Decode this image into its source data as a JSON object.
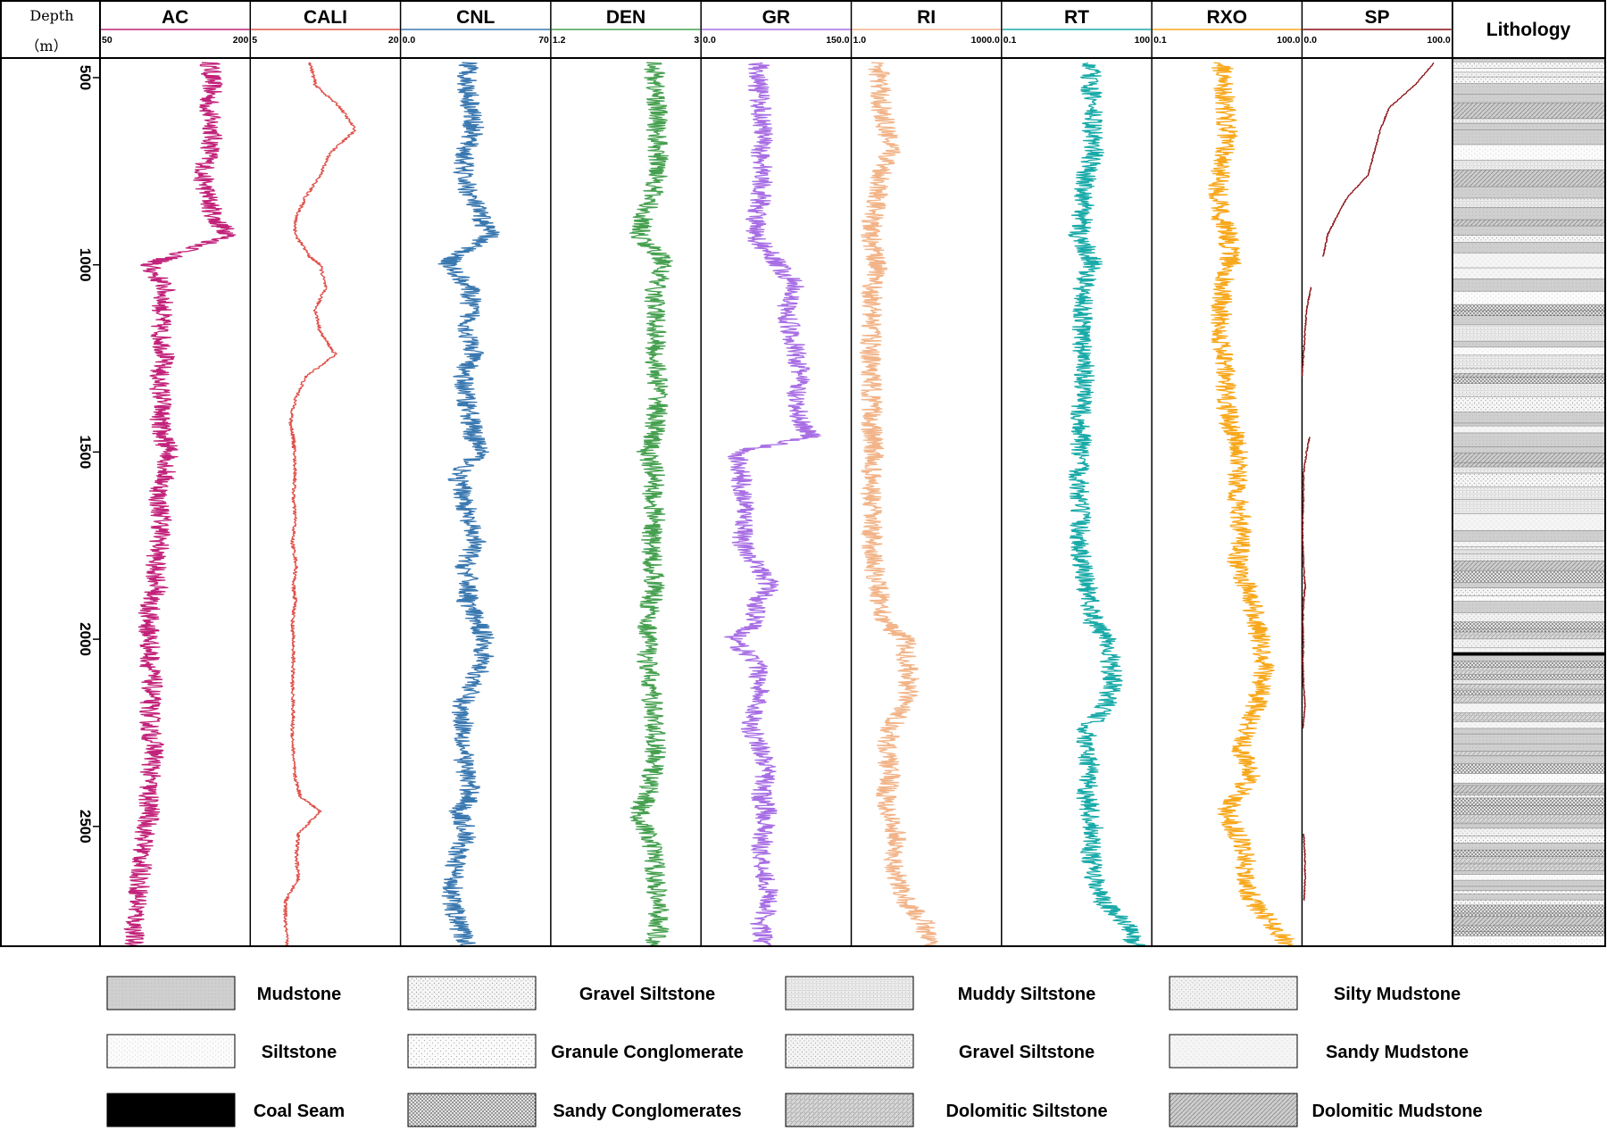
{
  "depth_track": {
    "title_line1": "Depth",
    "title_line2": "（m）"
  },
  "lithology_track": {
    "title": "Lithology"
  },
  "legend": [
    {
      "label": "Mudstone",
      "pattern": "mudstone"
    },
    {
      "label": "Gravel Siltstone",
      "pattern": "gravel_siltstone"
    },
    {
      "label": "Muddy Siltstone",
      "pattern": "muddy_siltstone"
    },
    {
      "label": "Silty Mudstone",
      "pattern": "silty_mudstone"
    },
    {
      "label": "Siltstone",
      "pattern": "siltstone"
    },
    {
      "label": "Granule Conglomerate",
      "pattern": "granule_conglomerate"
    },
    {
      "label": "Gravel Siltstone",
      "pattern": "gravel_siltstone2"
    },
    {
      "label": "Sandy Mudstone",
      "pattern": "sandy_mudstone"
    },
    {
      "label": "Coal Seam",
      "pattern": "coal"
    },
    {
      "label": "Sandy Conglomerates",
      "pattern": "sandy_conglomerates"
    },
    {
      "label": "Dolomitic Siltstone",
      "pattern": "dolomitic_siltstone"
    },
    {
      "label": "Dolomitic Mudstone",
      "pattern": "dolomitic_mudstone"
    }
  ],
  "chart_data": {
    "type": "line",
    "orientation": "vertical-well-log",
    "depth_axis": {
      "title": "Depth（m）",
      "range": [
        450,
        2820
      ],
      "ticks": [
        500,
        1000,
        1500,
        2000,
        2500
      ],
      "tick_labels": [
        "500",
        "1000",
        "1500",
        "2000",
        "2500"
      ]
    },
    "depth_samples": [
      460,
      520,
      580,
      640,
      700,
      760,
      820,
      880,
      920,
      980,
      1000,
      1060,
      1120,
      1180,
      1240,
      1300,
      1360,
      1420,
      1460,
      1500,
      1560,
      1620,
      1680,
      1740,
      1800,
      1860,
      1900,
      1960,
      2000,
      2060,
      2120,
      2180,
      2240,
      2300,
      2360,
      2420,
      2460,
      2520,
      2580,
      2640,
      2700,
      2760,
      2820
    ],
    "tracks": [
      {
        "name": "AC",
        "min_label": "50",
        "max_label": "200",
        "min": 50,
        "max": 200,
        "log": false,
        "color": "#c2227a",
        "values": [
          160,
          162,
          158,
          163,
          160,
          152,
          158,
          165,
          180,
          120,
          98,
          115,
          112,
          110,
          115,
          108,
          112,
          110,
          112,
          120,
          115,
          108,
          112,
          110,
          105,
          108,
          100,
          98,
          100,
          100,
          102,
          100,
          100,
          105,
          100,
          98,
          100,
          95,
          92,
          90,
          88,
          85,
          83
        ]
      },
      {
        "name": "CALI",
        "min_label": "5",
        "max_label": "20",
        "min": 5,
        "max": 20,
        "log": false,
        "color": "#e0504a",
        "values": [
          11,
          11.5,
          14,
          15.5,
          13,
          12,
          10.5,
          9.5,
          9.5,
          11,
          12,
          12.5,
          11.5,
          12,
          13.5,
          10.5,
          9.5,
          9,
          9.3,
          9.4,
          9.5,
          9.3,
          9.5,
          9.2,
          9.6,
          9.3,
          9.5,
          9.2,
          9.3,
          9.3,
          9.2,
          9.3,
          9.2,
          9.3,
          9.4,
          10,
          12,
          9.8,
          9.6,
          9.8,
          8.5,
          8.5,
          8.7
        ]
      },
      {
        "name": "CNL",
        "min_label": "0.0",
        "max_label": "70",
        "min": 0,
        "max": 70,
        "log": false,
        "color": "#3a78b0",
        "values": [
          32,
          31,
          33,
          34,
          30,
          29,
          33,
          38,
          42,
          25,
          22,
          32,
          33,
          31,
          34,
          29,
          31,
          33,
          34,
          38,
          26,
          30,
          31,
          35,
          30,
          32,
          31,
          36,
          40,
          38,
          34,
          28,
          30,
          29,
          31,
          33,
          27,
          31,
          26,
          25,
          24,
          27,
          31
        ]
      },
      {
        "name": "DEN",
        "min_label": "1.2",
        "max_label": "3",
        "min": 1.2,
        "max": 3,
        "log": false,
        "color": "#46a050",
        "values": [
          2.45,
          2.45,
          2.48,
          2.47,
          2.48,
          2.5,
          2.4,
          2.3,
          2.25,
          2.52,
          2.55,
          2.45,
          2.45,
          2.47,
          2.44,
          2.48,
          2.5,
          2.45,
          2.43,
          2.35,
          2.45,
          2.42,
          2.45,
          2.4,
          2.42,
          2.45,
          2.4,
          2.35,
          2.38,
          2.35,
          2.4,
          2.42,
          2.45,
          2.45,
          2.42,
          2.35,
          2.25,
          2.35,
          2.45,
          2.45,
          2.48,
          2.5,
          2.45
        ]
      },
      {
        "name": "GR",
        "min_label": "0.0",
        "max_label": "150.0",
        "min": 0,
        "max": 150,
        "log": false,
        "color": "#a86ee4",
        "values": [
          58,
          57,
          60,
          62,
          60,
          62,
          60,
          55,
          52,
          72,
          78,
          95,
          85,
          90,
          95,
          100,
          92,
          100,
          110,
          35,
          40,
          42,
          45,
          40,
          55,
          70,
          55,
          55,
          30,
          55,
          60,
          55,
          50,
          62,
          65,
          60,
          66,
          62,
          60,
          65,
          68,
          60,
          62
        ]
      },
      {
        "name": "RI",
        "min_label": "1.0",
        "max_label": "1000.0",
        "min": 1,
        "max": 1000,
        "log": true,
        "color": "#f2b488",
        "values": [
          3.5,
          3.8,
          4,
          5,
          6,
          4,
          3.5,
          2.6,
          2.4,
          3,
          3.5,
          2.5,
          2.6,
          2.5,
          2.4,
          2.5,
          2.6,
          2.5,
          2.6,
          2.8,
          2.5,
          2.4,
          2.6,
          2.6,
          2.8,
          3.5,
          3.8,
          5,
          12,
          13,
          14,
          12,
          6,
          5,
          6,
          5,
          5.5,
          8,
          7,
          8,
          12,
          30,
          35
        ]
      },
      {
        "name": "RT",
        "min_label": "0.1",
        "max_label": "100",
        "min": 0.1,
        "max": 100,
        "log": true,
        "color": "#18aaa8",
        "values": [
          6,
          6,
          6.5,
          6.5,
          7,
          5,
          4.5,
          4,
          3.5,
          6,
          6.5,
          4.2,
          4.2,
          4,
          4.2,
          4.5,
          4,
          3.8,
          4,
          3.5,
          3.6,
          3.5,
          3.8,
          3.6,
          4,
          5,
          6,
          7,
          14,
          15,
          16,
          12,
          5,
          5,
          6,
          5,
          6,
          7,
          6,
          7,
          10,
          30,
          50
        ]
      },
      {
        "name": "RXO",
        "min_label": "0.1",
        "max_label": "100.0",
        "min": 0.1,
        "max": 100,
        "log": true,
        "color": "#f8a81c",
        "values": [
          2.5,
          2.8,
          3,
          3.2,
          3,
          2.2,
          2.2,
          2.5,
          3.5,
          3.5,
          3.8,
          2.5,
          2.5,
          2.4,
          2.6,
          3,
          3,
          3.5,
          5,
          6,
          5,
          5,
          6,
          6,
          5,
          8,
          10,
          12,
          15,
          18,
          16,
          12,
          8,
          6,
          10,
          5,
          3,
          5,
          8,
          7,
          10,
          25,
          55
        ]
      },
      {
        "name": "SP",
        "min_label": "0.0",
        "max_label": "100.0",
        "min": 0,
        "max": 100,
        "log": false,
        "color": "#8a0f14",
        "values": [
          88,
          75,
          58,
          52,
          48,
          44,
          30,
          22,
          17,
          14,
          null,
          6,
          3,
          2,
          1,
          0,
          null,
          null,
          5,
          3,
          1,
          1,
          0.5,
          0.5,
          1,
          2,
          1,
          0.5,
          1,
          0.5,
          1,
          2,
          0.5,
          null,
          null,
          null,
          null,
          1,
          2,
          2,
          1.5,
          null,
          null
        ]
      }
    ],
    "lithology_column": {
      "title": "Lithology",
      "pattern": "interbedded mudstone, siltstone and conglomerate layers with thin coal seams near 2000 m",
      "dominant_pattern": "mudstone"
    },
    "legend_placement": "bottom",
    "grid": false
  }
}
